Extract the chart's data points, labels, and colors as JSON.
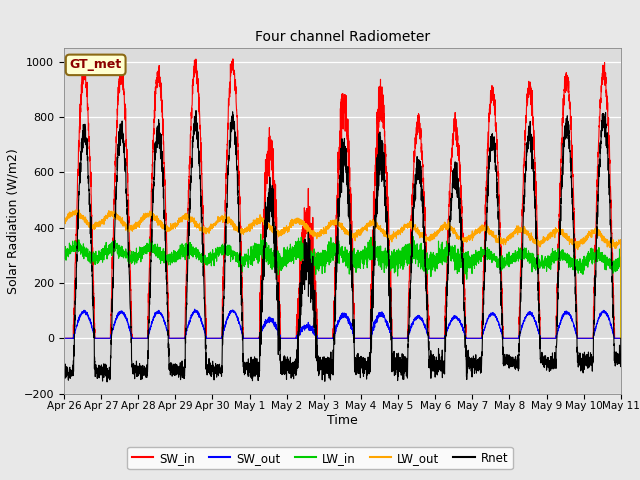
{
  "title": "Four channel Radiometer",
  "xlabel": "Time",
  "ylabel": "Solar Radiation (W/m2)",
  "ylim": [
    -200,
    1050
  ],
  "yticks": [
    -200,
    0,
    200,
    400,
    600,
    800,
    1000
  ],
  "fig_facecolor": "#e8e8e8",
  "plot_bg_color": "#e8e8e8",
  "legend_label": "GT_met",
  "legend_bg": "#ffffd0",
  "legend_border": "#8b6914",
  "series_colors": {
    "SW_in": "#ff0000",
    "SW_out": "#0000ff",
    "LW_in": "#00cc00",
    "LW_out": "#ffa500",
    "Rnet": "#000000"
  },
  "tick_labels": [
    "Apr 26",
    "Apr 27",
    "Apr 28",
    "Apr 29",
    "Apr 30",
    "May 1",
    "May 2",
    "May 3",
    "May 4",
    "May 5",
    "May 6",
    "May 7",
    "May 8",
    "May 9",
    "May 10",
    "May 11"
  ],
  "tick_positions": [
    0,
    1,
    2,
    3,
    4,
    5,
    6,
    7,
    8,
    9,
    10,
    11,
    12,
    13,
    14,
    15
  ]
}
